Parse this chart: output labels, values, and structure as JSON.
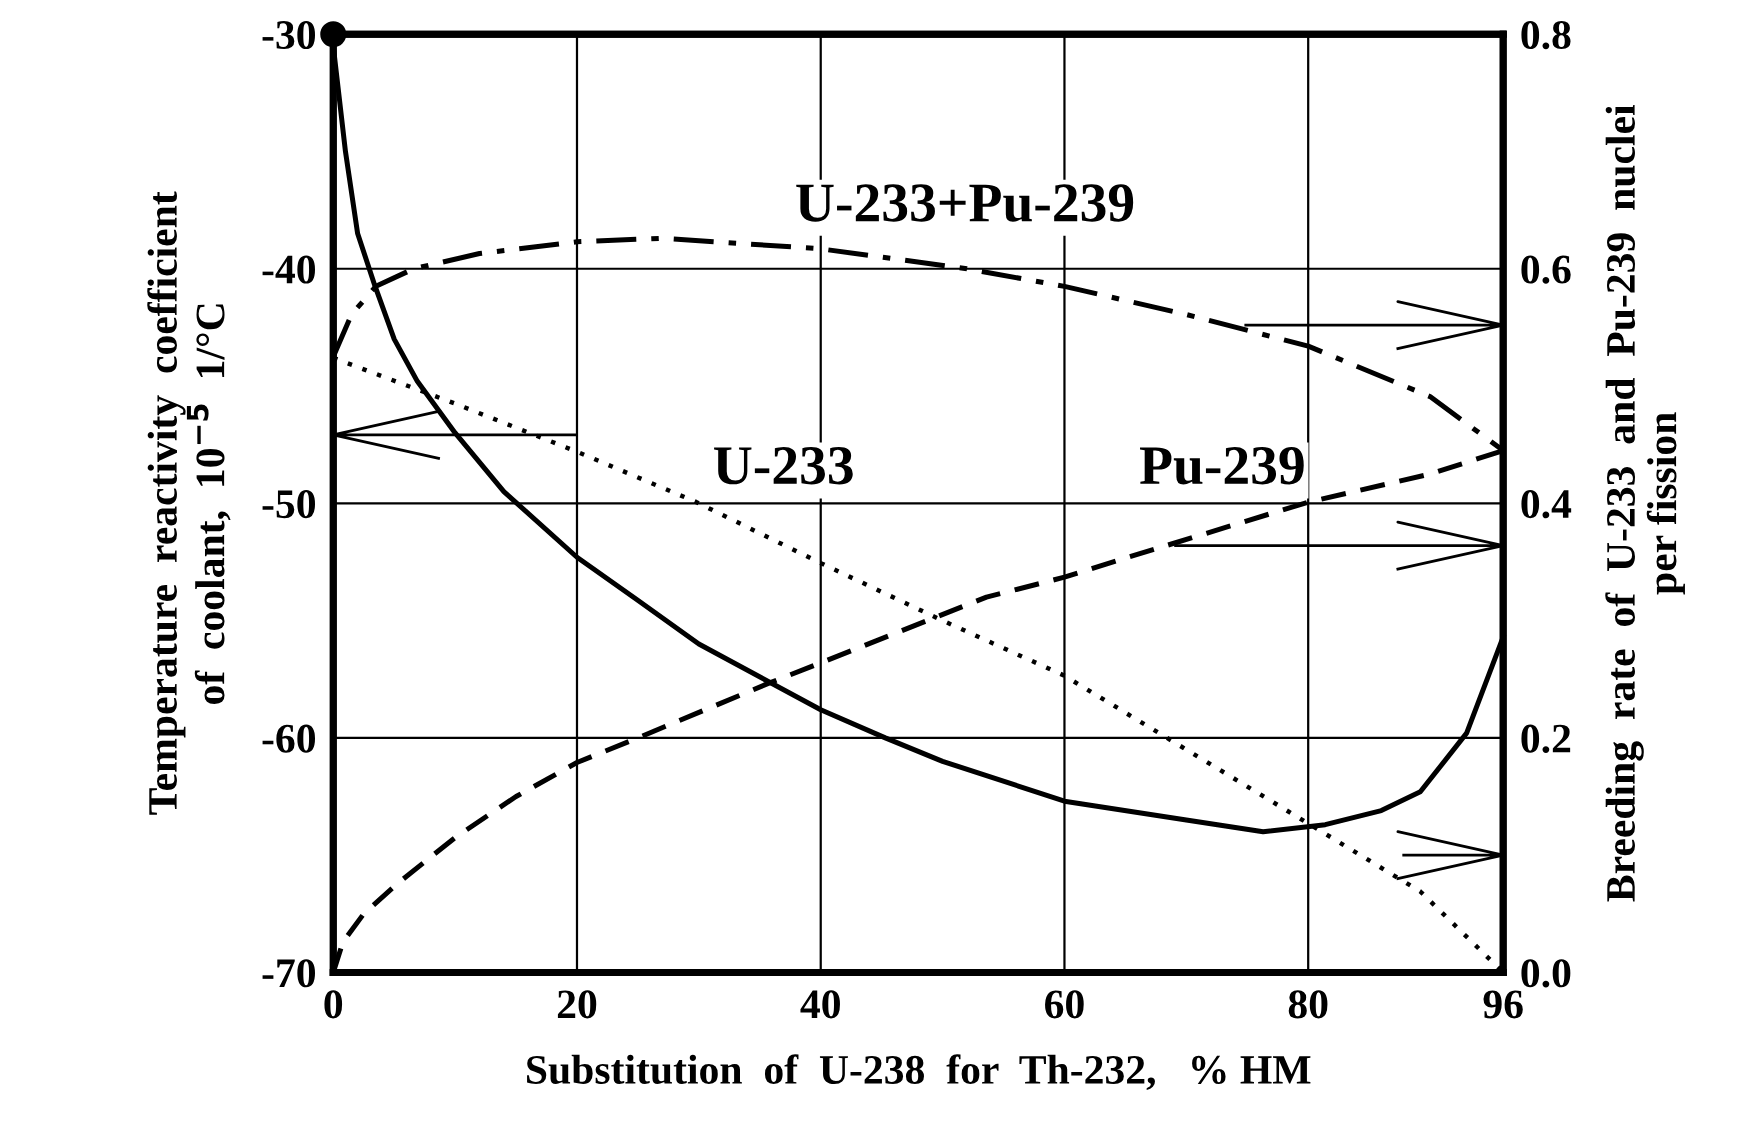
{
  "chart_data": {
    "type": "line",
    "xlabel": "Substitution  of  U-238  for  Th-232,   % HM",
    "ylabel": "Temperature  reactivity  coefficient\nof  coolant,  10$^{−5}$  1/°C",
    "y2label": "Breeding  rate  of  U-233  and  Pu-239  nuclei\nper fission",
    "xlim": [
      0,
      96
    ],
    "xticks": [
      0,
      20,
      40,
      60,
      80,
      96
    ],
    "ylim": [
      -70,
      -30
    ],
    "yticks": [
      -70,
      -60,
      -50,
      -40,
      -30
    ],
    "y2lim": [
      0.0,
      0.8
    ],
    "y2ticks": [
      {
        "value": 0.0,
        "label": "0.0"
      },
      0.2,
      0.4,
      0.6,
      0.8
    ],
    "grid": true,
    "series": [
      {
        "color": "#000000",
        "line_style": "solid",
        "x": [
          0,
          1,
          2,
          3.4,
          5,
          6.9,
          10,
          14,
          20,
          24.9,
          30,
          40,
          45.3,
          50,
          60,
          70,
          76.3,
          81.4,
          86,
          89.2,
          93,
          96
        ],
        "values": [
          -30.5,
          -35,
          -38.5,
          -40.7,
          -43,
          -44.8,
          -47,
          -49.5,
          -52.3,
          -54.1,
          -56,
          -58.8,
          -60,
          -61,
          -62.7,
          -63.5,
          -64.0,
          -63.7,
          -63.1,
          -62.3,
          -59.8,
          -55.7
        ]
      },
      {
        "axis": "y2",
        "color": "#000000",
        "line_style": "dotted",
        "x": [
          0,
          10,
          20,
          29.8,
          40,
          50,
          60,
          70,
          80,
          89.2,
          96
        ],
        "values": [
          0.524,
          0.485,
          0.444,
          0.401,
          0.349,
          0.3,
          0.253,
          0.19,
          0.127,
          0.069,
          0.0
        ]
      },
      {
        "axis": "y2",
        "color": "#000000",
        "line_style": "dashed",
        "x": [
          0,
          0.8,
          2.5,
          5.3,
          10,
          15,
          20,
          25,
          35.6,
          40,
          53.6,
          60,
          64.6,
          80,
          90,
          96
        ],
        "values": [
          0.0,
          0.026,
          0.05,
          0.076,
          0.115,
          0.15,
          0.179,
          0.2,
          0.246,
          0.264,
          0.32,
          0.337,
          0.352,
          0.401,
          0.425,
          0.445
        ]
      },
      {
        "axis": "y2",
        "color": "#000000",
        "line_style": "dashdot",
        "x": [
          0,
          1.5,
          3.5,
          6.6,
          12,
          20,
          27,
          40,
          52,
          60,
          70,
          80,
          90,
          96
        ],
        "values": [
          0.525,
          0.561,
          0.585,
          0.6,
          0.613,
          0.623,
          0.626,
          0.617,
          0.6,
          0.585,
          0.561,
          0.534,
          0.491,
          0.445
        ]
      },
      {
        "type": "scatter",
        "color": "#000000",
        "marker": "circle",
        "x": [
          0
        ],
        "values": [
          -30
        ]
      }
    ],
    "annotations": [
      "U-233+Pu-239",
      "U-233",
      "Pu-239"
    ]
  }
}
